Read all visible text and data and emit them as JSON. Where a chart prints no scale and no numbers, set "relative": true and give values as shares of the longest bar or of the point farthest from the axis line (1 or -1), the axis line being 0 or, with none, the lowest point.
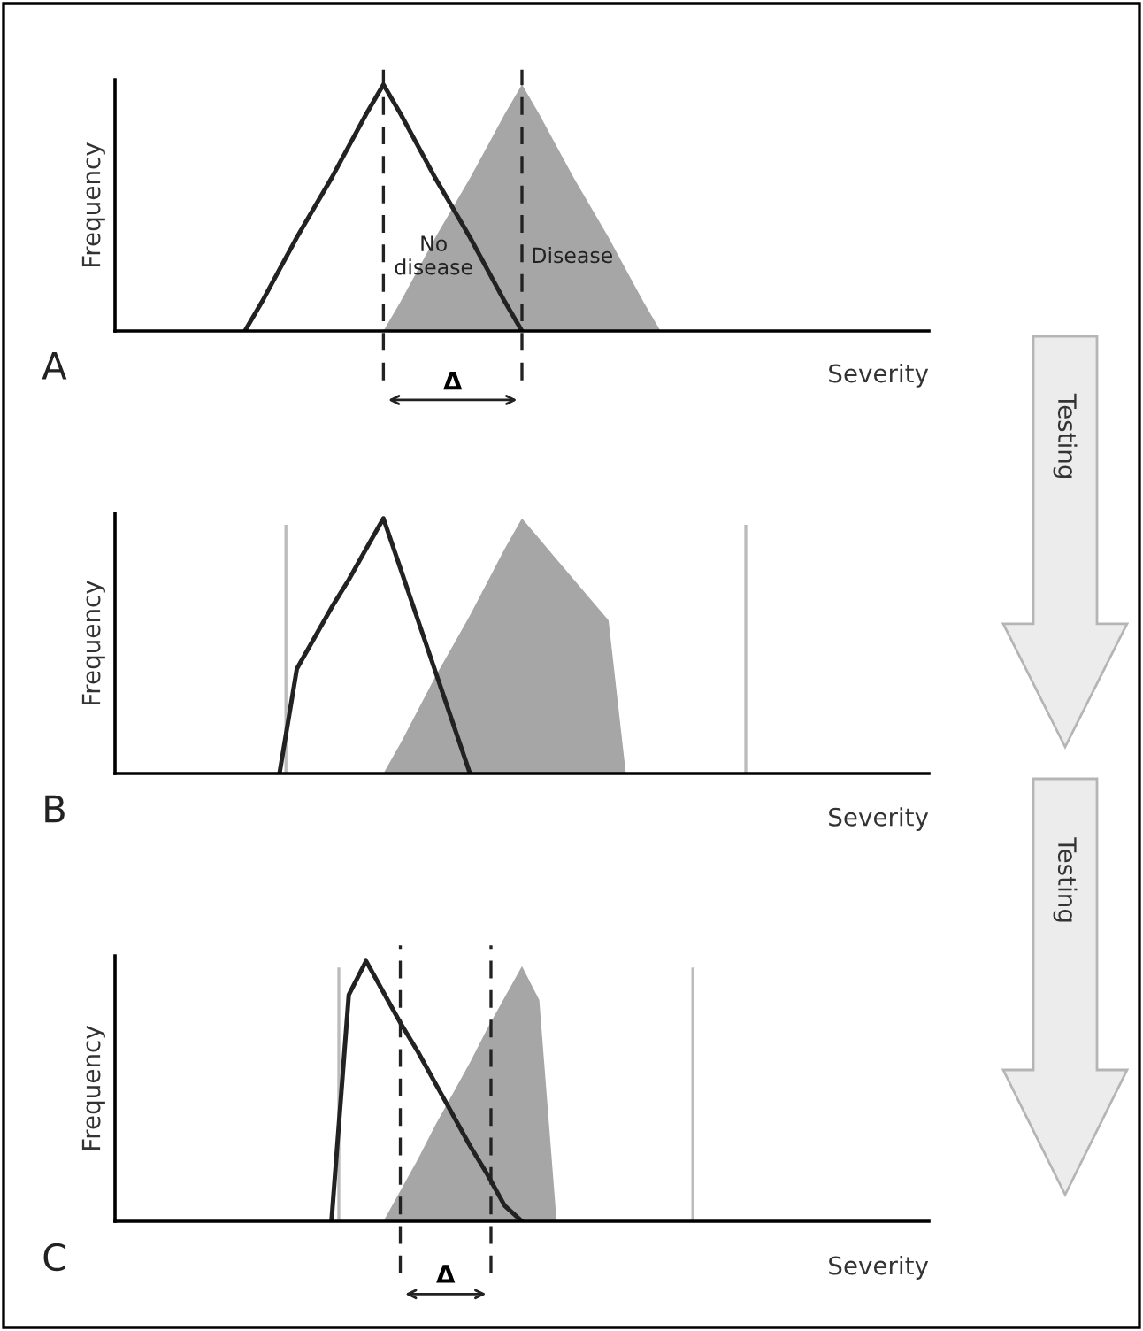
{
  "chart_data": [
    {
      "type": "line",
      "title": "A",
      "xlabel": "Severity",
      "ylabel": "Frequency",
      "relative": true,
      "categories": [
        null,
        null,
        null,
        null,
        null,
        null,
        null,
        null,
        null,
        null,
        null,
        null,
        null,
        null,
        null,
        null,
        null,
        null,
        null,
        null,
        null,
        null,
        null,
        null,
        null,
        null,
        null,
        null,
        null,
        null,
        null,
        null,
        null,
        null,
        null,
        null,
        null,
        null,
        null,
        null,
        null,
        null,
        null,
        null,
        null,
        null,
        null
      ],
      "series": [
        {
          "name": "No disease",
          "color": "#222222",
          "values": [
            null,
            null,
            null,
            null,
            null,
            null,
            null,
            0,
            0.12,
            0.25,
            0.38,
            0.5,
            0.62,
            0.75,
            0.88,
            1,
            0.88,
            0.75,
            0.62,
            0.5,
            0.38,
            0.25,
            0.12,
            0,
            null,
            null,
            null,
            null,
            null,
            null,
            null,
            null,
            null,
            null,
            null,
            null,
            null,
            null,
            null,
            null,
            null,
            null,
            null,
            null,
            null,
            null,
            null
          ]
        },
        {
          "name": "Disease",
          "type": "area",
          "color": "#a6a6a6",
          "values": [
            null,
            null,
            null,
            null,
            null,
            null,
            null,
            null,
            null,
            null,
            null,
            null,
            null,
            null,
            null,
            0,
            0.12,
            0.25,
            0.38,
            0.5,
            0.62,
            0.75,
            0.88,
            1,
            0.88,
            0.75,
            0.62,
            0.5,
            0.38,
            0.25,
            0.12,
            0,
            null,
            null,
            null,
            null,
            null,
            null,
            null,
            null,
            null,
            null,
            null,
            null,
            null,
            null,
            null
          ]
        }
      ],
      "annotations": [
        "Δ"
      ]
    },
    {
      "type": "line",
      "title": "B",
      "xlabel": "Severity",
      "ylabel": "Frequency",
      "relative": true,
      "categories": [
        null,
        null,
        null,
        null,
        null,
        null,
        null,
        null,
        null,
        null,
        null,
        null,
        null,
        null,
        null,
        null,
        null,
        null,
        null,
        null,
        null,
        null,
        null,
        null,
        null,
        null,
        null,
        null,
        null,
        null,
        null,
        null,
        null,
        null,
        null,
        null,
        null,
        null,
        null,
        null,
        null,
        null,
        null,
        null,
        null,
        null,
        null
      ],
      "series": [
        {
          "color": "#222222",
          "values": [
            null,
            null,
            null,
            null,
            null,
            null,
            null,
            null,
            null,
            0,
            0.41,
            0.53,
            0.65,
            0.76,
            0.88,
            1,
            0.8,
            0.6,
            0.4,
            0.2,
            0,
            null,
            null,
            null,
            null,
            null,
            null,
            null,
            null,
            null,
            null,
            null,
            null,
            null,
            null,
            null,
            null,
            null,
            null,
            null,
            null,
            null,
            null,
            null,
            null,
            null,
            null
          ]
        },
        {
          "type": "area",
          "color": "#a6a6a6",
          "values": [
            null,
            null,
            null,
            null,
            null,
            null,
            null,
            null,
            null,
            null,
            null,
            null,
            null,
            null,
            null,
            0,
            0.12,
            0.25,
            0.38,
            0.5,
            0.62,
            0.75,
            0.88,
            1,
            0.92,
            0.84,
            0.76,
            0.68,
            0.6,
            0,
            null,
            null,
            null,
            null,
            null,
            null,
            null,
            null,
            null,
            null,
            null,
            null,
            null,
            null,
            null,
            null,
            null
          ]
        }
      ],
      "annotations": [
        "Testing"
      ]
    },
    {
      "type": "line",
      "title": "C",
      "xlabel": "Severity",
      "ylabel": "Frequency",
      "relative": true,
      "categories": [
        null,
        null,
        null,
        null,
        null,
        null,
        null,
        null,
        null,
        null,
        null,
        null,
        null,
        null,
        null,
        null,
        null,
        null,
        null,
        null,
        null,
        null,
        null,
        null,
        null,
        null,
        null,
        null,
        null,
        null,
        null,
        null,
        null,
        null,
        null,
        null,
        null,
        null,
        null,
        null,
        null,
        null,
        null,
        null,
        null,
        null,
        null
      ],
      "series": [
        {
          "color": "#222222",
          "values": [
            null,
            null,
            null,
            null,
            null,
            null,
            null,
            null,
            null,
            null,
            null,
            null,
            0,
            0.87,
            1,
            0.88,
            0.76,
            0.65,
            0.53,
            0.41,
            0.29,
            0.18,
            0.06,
            0,
            null,
            null,
            null,
            null,
            null,
            null,
            null,
            null,
            null,
            null,
            null,
            null,
            null,
            null,
            null,
            null,
            null,
            null,
            null,
            null,
            null,
            null,
            null
          ]
        },
        {
          "type": "area",
          "color": "#a6a6a6",
          "values": [
            null,
            null,
            null,
            null,
            null,
            null,
            null,
            null,
            null,
            null,
            null,
            null,
            null,
            null,
            null,
            0,
            0.12,
            0.24,
            0.37,
            0.49,
            0.61,
            0.74,
            0.86,
            0.98,
            0.85,
            0,
            null,
            null,
            null,
            null,
            null,
            null,
            null,
            null,
            null,
            null,
            null,
            null,
            null,
            null,
            null,
            null,
            null,
            null,
            null,
            null,
            null
          ]
        }
      ],
      "annotations": [
        "Δ",
        "Testing"
      ]
    }
  ]
}
